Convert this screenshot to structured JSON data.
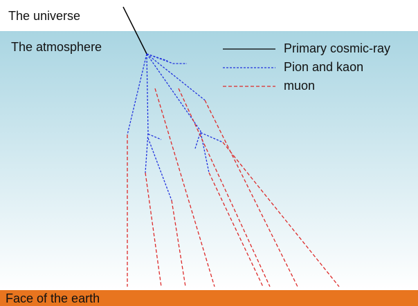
{
  "labels": {
    "universe": "The universe",
    "atmosphere": "The atmosphere",
    "earth": "Face of the earth"
  },
  "legend": [
    {
      "label": "Primary cosmic-ray"
    },
    {
      "label": "Pion and kaon"
    },
    {
      "label": "muon"
    }
  ]
}
